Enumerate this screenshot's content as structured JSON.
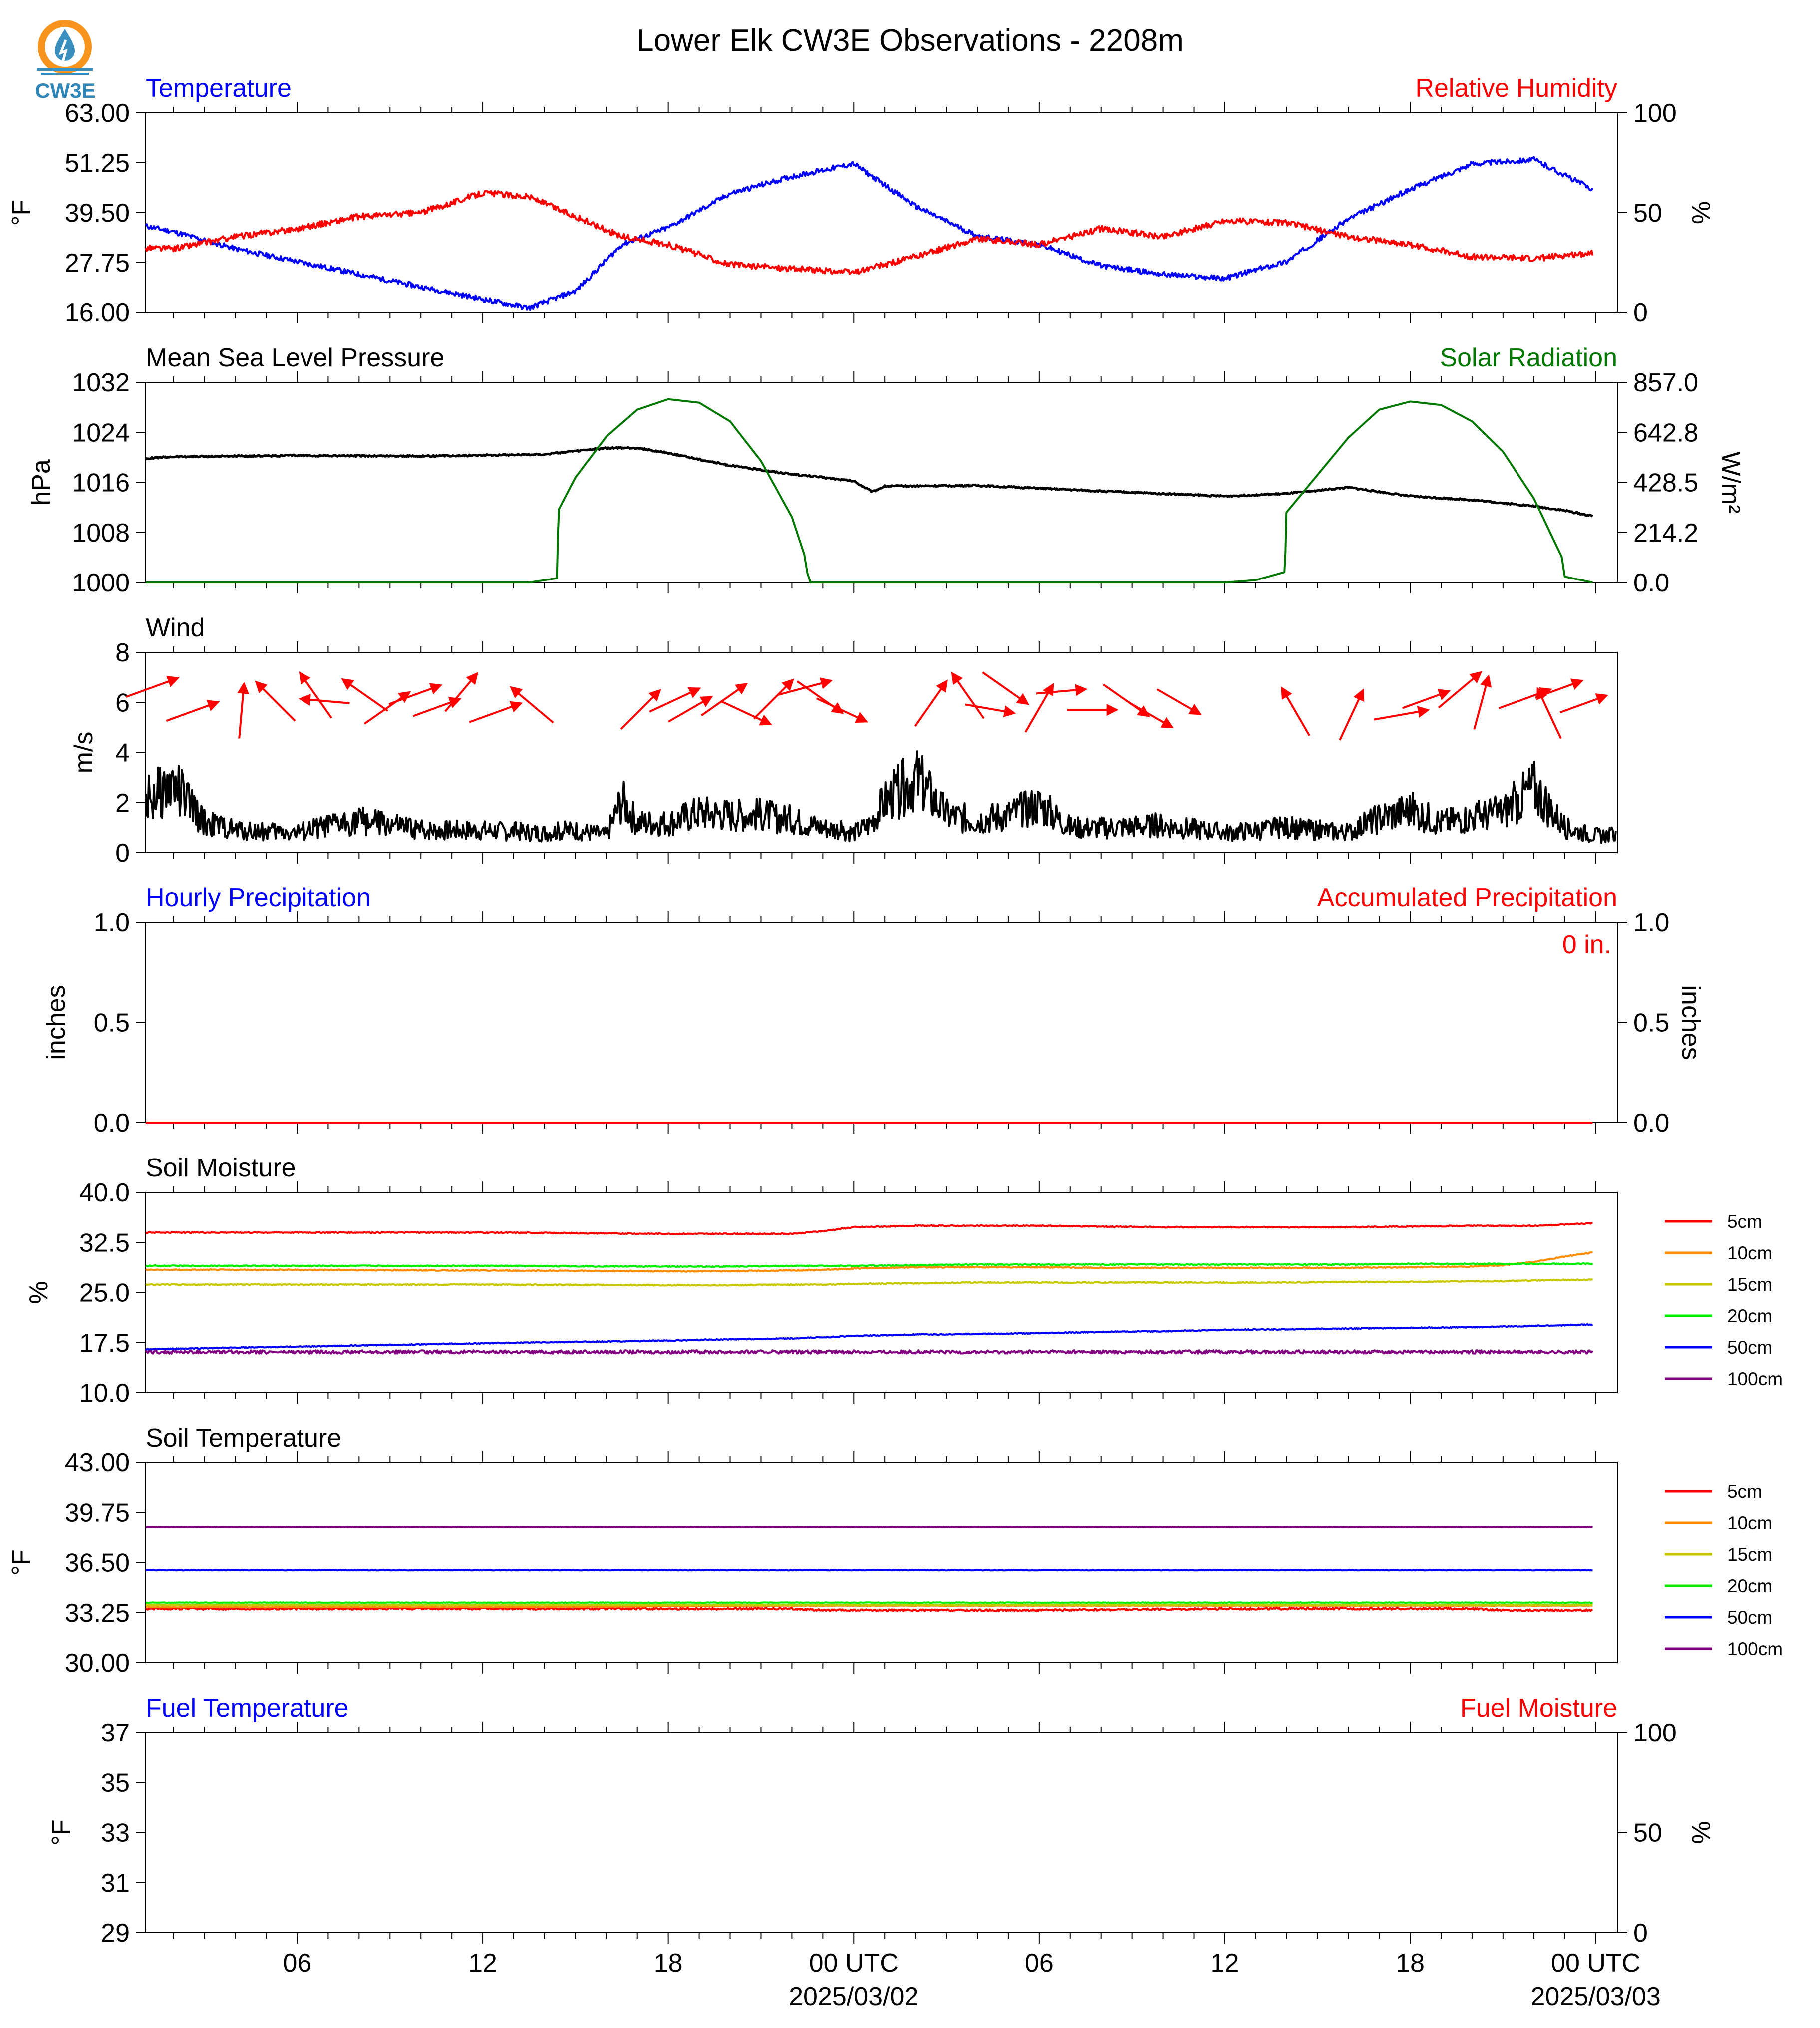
{
  "title": "Lower Elk CW3E Observations - 2208m",
  "logo": {
    "text": "CW3E",
    "colors": {
      "ring": "#f7941d",
      "drop": "#3a8fbf",
      "text": "#2f86b8"
    }
  },
  "colors": {
    "blue": "#0000ff",
    "red": "#ff0000",
    "black": "#000000",
    "green": "#007800"
  },
  "x_axis": {
    "major_ticks": [
      {
        "label": "06",
        "sub": ""
      },
      {
        "label": "12",
        "sub": ""
      },
      {
        "label": "18",
        "sub": ""
      },
      {
        "label": "00 UTC",
        "sub": "2025/03/02"
      },
      {
        "label": "06",
        "sub": ""
      },
      {
        "label": "12",
        "sub": ""
      },
      {
        "label": "18",
        "sub": ""
      },
      {
        "label": "00 UTC",
        "sub": "2025/03/03"
      }
    ]
  },
  "panels": {
    "temperature": {
      "left_title": "Temperature",
      "right_title": "Relative Humidity",
      "left_unit": "°F",
      "right_unit": "%",
      "left_ticks": [
        "63.00",
        "51.25",
        "39.50",
        "27.75",
        "16.00"
      ],
      "right_ticks": [
        "100",
        "50",
        "0"
      ]
    },
    "pressure": {
      "left_title": "Mean Sea Level Pressure",
      "right_title": "Solar Radiation",
      "left_unit": "hPa",
      "right_unit": "W/m²",
      "left_ticks": [
        "1032",
        "1024",
        "1016",
        "1008",
        "1000"
      ],
      "right_ticks": [
        "857.0",
        "642.8",
        "428.5",
        "214.2",
        "0.0"
      ]
    },
    "wind": {
      "left_title": "Wind",
      "left_unit": "m/s",
      "left_ticks": [
        "8",
        "6",
        "4",
        "2",
        "0"
      ]
    },
    "precip": {
      "left_title": "Hourly Precipitation",
      "right_title": "Accumulated Precipitation",
      "left_unit": "inches",
      "right_unit": "inches",
      "left_ticks": [
        "1.0",
        "0.5",
        "0.0"
      ],
      "right_ticks": [
        "1.0",
        "0.5",
        "0.0"
      ],
      "annotation": "0 in."
    },
    "soil_moisture": {
      "left_title": "Soil Moisture",
      "left_unit": "%",
      "left_ticks": [
        "40.0",
        "32.5",
        "25.0",
        "17.5",
        "10.0"
      ],
      "legend": [
        {
          "label": "5cm",
          "color": "#ff0000"
        },
        {
          "label": "10cm",
          "color": "#ff8c00"
        },
        {
          "label": "15cm",
          "color": "#c8c800"
        },
        {
          "label": "20cm",
          "color": "#00ee00"
        },
        {
          "label": "50cm",
          "color": "#0000ff"
        },
        {
          "label": "100cm",
          "color": "#800080"
        }
      ]
    },
    "soil_temp": {
      "left_title": "Soil Temperature",
      "left_unit": "°F",
      "left_ticks": [
        "43.00",
        "39.75",
        "36.50",
        "33.25",
        "30.00"
      ],
      "legend": [
        {
          "label": "5cm",
          "color": "#ff0000"
        },
        {
          "label": "10cm",
          "color": "#ff8c00"
        },
        {
          "label": "15cm",
          "color": "#c8c800"
        },
        {
          "label": "20cm",
          "color": "#00ee00"
        },
        {
          "label": "50cm",
          "color": "#0000ff"
        },
        {
          "label": "100cm",
          "color": "#800080"
        }
      ]
    },
    "fuel": {
      "left_title": "Fuel Temperature",
      "right_title": "Fuel Moisture",
      "left_unit": "°F",
      "right_unit": "%",
      "left_ticks": [
        "37",
        "35",
        "33",
        "31",
        "29"
      ],
      "right_ticks": [
        "100",
        "50",
        "0"
      ]
    }
  },
  "chart_data": [
    {
      "type": "line",
      "panel": "temperature",
      "x": [
        0,
        2,
        4,
        6,
        8,
        10,
        12,
        13.5,
        15,
        16.5,
        18,
        20,
        22,
        24,
        26,
        28,
        30,
        32,
        34,
        36,
        38,
        40,
        42,
        44,
        46,
        47.9
      ],
      "ylim": [
        16,
        63
      ],
      "series": [
        {
          "name": "Temperature",
          "color": "#0000ff",
          "values": [
            38,
            35,
            31,
            28,
            25,
            22,
            19,
            17,
            21,
            32,
            36,
            44,
            48,
            51,
            41,
            34,
            32,
            27,
            25,
            24,
            28,
            38,
            45,
            51,
            52,
            45
          ]
        },
        {
          "axis": "right",
          "ylim": [
            0,
            100
          ],
          "color": "#ff0000",
          "values": [
            33,
            32,
            38,
            42,
            48,
            50,
            60,
            58,
            48,
            38,
            34,
            24,
            22,
            20,
            28,
            37,
            34,
            42,
            38,
            46,
            45,
            38,
            34,
            28,
            27,
            30
          ]
        }
      ]
    },
    {
      "type": "line",
      "panel": "pressure",
      "x": [
        0,
        0.5,
        2,
        6,
        10,
        14,
        16,
        17,
        18,
        20,
        22,
        23,
        23.5,
        24,
        24.6,
        25,
        28,
        32,
        36,
        38,
        40,
        42,
        44,
        46,
        47,
        47.9
      ],
      "ylim": [
        1000,
        1032
      ],
      "series": [
        {
          "color": "#000000",
          "values": [
            1018.8,
            1019.7,
            1020.1,
            1020.3,
            1020.2,
            1020.5,
            1021.5,
            1021.5,
            1020.7,
            1018.7,
            1017.3,
            1016.8,
            1016.5,
            1016.2,
            1014.5,
            1015.4,
            1015.5,
            1014.6,
            1013.8,
            1014.2,
            1015.2,
            1013.8,
            1013.2,
            1012.2,
            1011.5,
            1010.6
          ]
        },
        {
          "axis": "right",
          "ylim": [
            0,
            857
          ],
          "color": "#007800",
          "x": [
            0,
            13.5,
            14.4,
            14.45,
            15,
            16,
            17,
            18,
            19,
            20,
            21,
            22,
            22.4,
            22.5,
            22.6,
            23,
            36,
            37,
            37.95,
            38,
            39,
            40,
            41,
            42,
            43,
            44,
            45,
            46,
            46.9,
            47,
            47.9
          ],
          "values": [
            0,
            0,
            18,
            310,
            450,
            625,
            740,
            785,
            770,
            690,
            520,
            280,
            120,
            40,
            0,
            0,
            0,
            10,
            45,
            300,
            460,
            620,
            740,
            775,
            760,
            690,
            560,
            360,
            110,
            25,
            0
          ]
        }
      ]
    },
    {
      "type": "line",
      "panel": "wind",
      "x": [
        0,
        1,
        2,
        3,
        4,
        6,
        8,
        10,
        12,
        14,
        15,
        16,
        16.5,
        17,
        18,
        19,
        20,
        21,
        22,
        23,
        24,
        24.5,
        25,
        26,
        27,
        28,
        29,
        30,
        31,
        32,
        34,
        36,
        38,
        40,
        41,
        42,
        43,
        44,
        45,
        46,
        47,
        47.9
      ],
      "ylim": [
        0,
        8
      ],
      "series": [
        {
          "name": "Wind",
          "color": "#000000",
          "values": [
            1.3,
            2.0,
            2.7,
            1.2,
            0.9,
            0.8,
            1.3,
            0.9,
            0.9,
            0.8,
            0.9,
            0.7,
            2.1,
            1.2,
            1.2,
            1.6,
            1.5,
            1.5,
            1.3,
            1.0,
            0.8,
            1.1,
            2.0,
            3.0,
            1.5,
            1.3,
            1.5,
            1.9,
            1.0,
            1.0,
            1.1,
            0.8,
            1.0,
            0.8,
            1.4,
            1.7,
            1.2,
            1.4,
            1.6,
            2.6,
            1.0,
            0.7
          ]
        }
      ],
      "vectors": [
        {
          "t": 0.0,
          "dir": 250,
          "speed": 2.0
        },
        {
          "t": 1.3,
          "dir": 250,
          "speed": 2.0
        },
        {
          "t": 2.9,
          "dir": 185,
          "speed": 2.0
        },
        {
          "t": 4.0,
          "dir": 135,
          "speed": 2.0
        },
        {
          "t": 5.3,
          "dir": 145,
          "speed": 2.0
        },
        {
          "t": 5.6,
          "dir": 95,
          "speed": 1.8
        },
        {
          "t": 6.9,
          "dir": 125,
          "speed": 2.0
        },
        {
          "t": 7.6,
          "dir": 235,
          "speed": 2.0
        },
        {
          "t": 8.5,
          "dir": 250,
          "speed": 2.0
        },
        {
          "t": 9.2,
          "dir": 250,
          "speed": 1.8
        },
        {
          "t": 10.0,
          "dir": 220,
          "speed": 1.8
        },
        {
          "t": 11.1,
          "dir": 250,
          "speed": 2.0
        },
        {
          "t": 12.3,
          "dir": 130,
          "speed": 2.0
        },
        {
          "t": 15.8,
          "dir": 225,
          "speed": 2.0
        },
        {
          "t": 16.9,
          "dir": 245,
          "speed": 2.0
        },
        {
          "t": 17.4,
          "dir": 240,
          "speed": 1.8
        },
        {
          "t": 18.5,
          "dir": 235,
          "speed": 2.0
        },
        {
          "t": 19.2,
          "dir": 295,
          "speed": 2.0
        },
        {
          "t": 20.1,
          "dir": 225,
          "speed": 2.0
        },
        {
          "t": 21.1,
          "dir": 255,
          "speed": 2.0
        },
        {
          "t": 21.6,
          "dir": 305,
          "speed": 2.0
        },
        {
          "t": 22.3,
          "dir": 295,
          "speed": 2.0
        },
        {
          "t": 25.2,
          "dir": 215,
          "speed": 2.0
        },
        {
          "t": 26.4,
          "dir": 145,
          "speed": 2.0
        },
        {
          "t": 27.1,
          "dir": 280,
          "speed": 1.8
        },
        {
          "t": 27.6,
          "dir": 305,
          "speed": 2.0
        },
        {
          "t": 28.7,
          "dir": 210,
          "speed": 2.0
        },
        {
          "t": 29.4,
          "dir": 265,
          "speed": 1.8
        },
        {
          "t": 30.4,
          "dir": 270,
          "speed": 1.8
        },
        {
          "t": 31.5,
          "dir": 305,
          "speed": 2.0
        },
        {
          "t": 32.3,
          "dir": 300,
          "speed": 1.8
        },
        {
          "t": 33.2,
          "dir": 300,
          "speed": 1.8
        },
        {
          "t": 37.0,
          "dir": 150,
          "speed": 2.0
        },
        {
          "t": 38.8,
          "dir": 205,
          "speed": 2.0
        },
        {
          "t": 40.4,
          "dir": 260,
          "speed": 2.0
        },
        {
          "t": 41.2,
          "dir": 250,
          "speed": 1.8
        },
        {
          "t": 42.3,
          "dir": 230,
          "speed": 2.0
        },
        {
          "t": 43.0,
          "dir": 195,
          "speed": 2.0
        },
        {
          "t": 44.4,
          "dir": 250,
          "speed": 2.0
        },
        {
          "t": 45.2,
          "dir": 155,
          "speed": 2.0
        },
        {
          "t": 45.5,
          "dir": 250,
          "speed": 1.8
        },
        {
          "t": 46.3,
          "dir": 250,
          "speed": 1.8
        }
      ]
    },
    {
      "type": "line",
      "panel": "precip",
      "x": [
        0,
        47.9
      ],
      "ylim": [
        0,
        1
      ],
      "series": [
        {
          "name": "Hourly Precipitation",
          "color": "#0000ff",
          "values": [
            0,
            0
          ]
        },
        {
          "name": "Accumulated Precipitation",
          "axis": "right",
          "ylim": [
            0,
            1
          ],
          "color": "#ff0000",
          "values": [
            0,
            0
          ]
        }
      ]
    },
    {
      "type": "line",
      "panel": "soil_moisture",
      "x": [
        0,
        6,
        12,
        18,
        20,
        22,
        23,
        24,
        26,
        28,
        30,
        32,
        34,
        36,
        38,
        40,
        42,
        44,
        45,
        46,
        47,
        47.9
      ],
      "ylim": [
        10,
        40
      ],
      "series": [
        {
          "name": "5cm",
          "color": "#ff0000",
          "values": [
            34.0,
            34.0,
            34.0,
            33.8,
            33.8,
            33.8,
            34.2,
            34.8,
            35.0,
            35.0,
            35.0,
            34.9,
            34.8,
            34.8,
            34.8,
            34.8,
            34.9,
            35.0,
            35.0,
            35.0,
            35.2,
            35.4
          ]
        },
        {
          "name": "10cm",
          "color": "#ff8c00",
          "values": [
            28.4,
            28.4,
            28.3,
            28.2,
            28.2,
            28.3,
            28.4,
            28.6,
            28.8,
            28.8,
            28.8,
            28.7,
            28.7,
            28.7,
            28.7,
            28.7,
            28.8,
            28.9,
            29.1,
            29.6,
            30.4,
            31.0
          ]
        },
        {
          "name": "15cm",
          "color": "#c8c800",
          "values": [
            26.2,
            26.2,
            26.2,
            26.1,
            26.1,
            26.2,
            26.2,
            26.3,
            26.4,
            26.5,
            26.5,
            26.5,
            26.5,
            26.5,
            26.5,
            26.6,
            26.6,
            26.7,
            26.7,
            26.8,
            26.9,
            26.9
          ]
        },
        {
          "name": "20cm",
          "color": "#00ee00",
          "values": [
            29.0,
            29.0,
            29.0,
            28.9,
            28.9,
            29.0,
            29.0,
            29.0,
            29.1,
            29.2,
            29.2,
            29.2,
            29.2,
            29.2,
            29.2,
            29.2,
            29.3,
            29.3,
            29.3,
            29.3,
            29.3,
            29.3
          ]
        },
        {
          "name": "50cm",
          "color": "#0000ff",
          "values": [
            16.4,
            16.9,
            17.4,
            17.8,
            18.0,
            18.1,
            18.3,
            18.5,
            18.7,
            18.8,
            18.9,
            19.1,
            19.2,
            19.4,
            19.5,
            19.6,
            19.7,
            19.8,
            19.9,
            20.0,
            20.1,
            20.2
          ]
        },
        {
          "name": "100cm",
          "color": "#800080",
          "values": [
            16.1,
            16.1,
            16.1,
            16.1,
            16.1,
            16.1,
            16.1,
            16.1,
            16.1,
            16.1,
            16.1,
            16.1,
            16.1,
            16.1,
            16.1,
            16.1,
            16.1,
            16.1,
            16.1,
            16.1,
            16.1,
            16.1
          ]
        }
      ]
    },
    {
      "type": "line",
      "panel": "soil_temp",
      "x": [
        0,
        12,
        22,
        23,
        24,
        30,
        36,
        44,
        45,
        47.9
      ],
      "ylim": [
        30,
        43
      ],
      "series": [
        {
          "name": "5cm",
          "color": "#ff0000",
          "values": [
            33.5,
            33.5,
            33.5,
            33.4,
            33.4,
            33.4,
            33.5,
            33.5,
            33.4,
            33.4
          ]
        },
        {
          "name": "10cm",
          "color": "#ff8c00",
          "values": [
            33.6,
            33.6,
            33.7,
            33.7,
            33.7,
            33.7,
            33.7,
            33.7,
            33.7,
            33.7
          ]
        },
        {
          "name": "15cm",
          "color": "#c8c800",
          "values": [
            33.75,
            33.75,
            33.75,
            33.75,
            33.75,
            33.75,
            33.75,
            33.75,
            33.75,
            33.75
          ]
        },
        {
          "name": "20cm",
          "color": "#00ee00",
          "values": [
            33.9,
            33.9,
            33.9,
            33.9,
            33.9,
            33.9,
            33.9,
            33.9,
            33.9,
            33.9
          ]
        },
        {
          "name": "50cm",
          "color": "#0000ff",
          "values": [
            36.0,
            36.0,
            36.0,
            36.0,
            36.0,
            36.0,
            36.0,
            36.0,
            36.0,
            36.0
          ]
        },
        {
          "name": "100cm",
          "color": "#800080",
          "values": [
            38.8,
            38.8,
            38.8,
            38.8,
            38.8,
            38.8,
            38.8,
            38.8,
            38.8,
            38.8
          ]
        }
      ]
    },
    {
      "type": "line",
      "panel": "fuel",
      "x": [],
      "ylim": [
        29,
        37
      ],
      "series": []
    }
  ]
}
